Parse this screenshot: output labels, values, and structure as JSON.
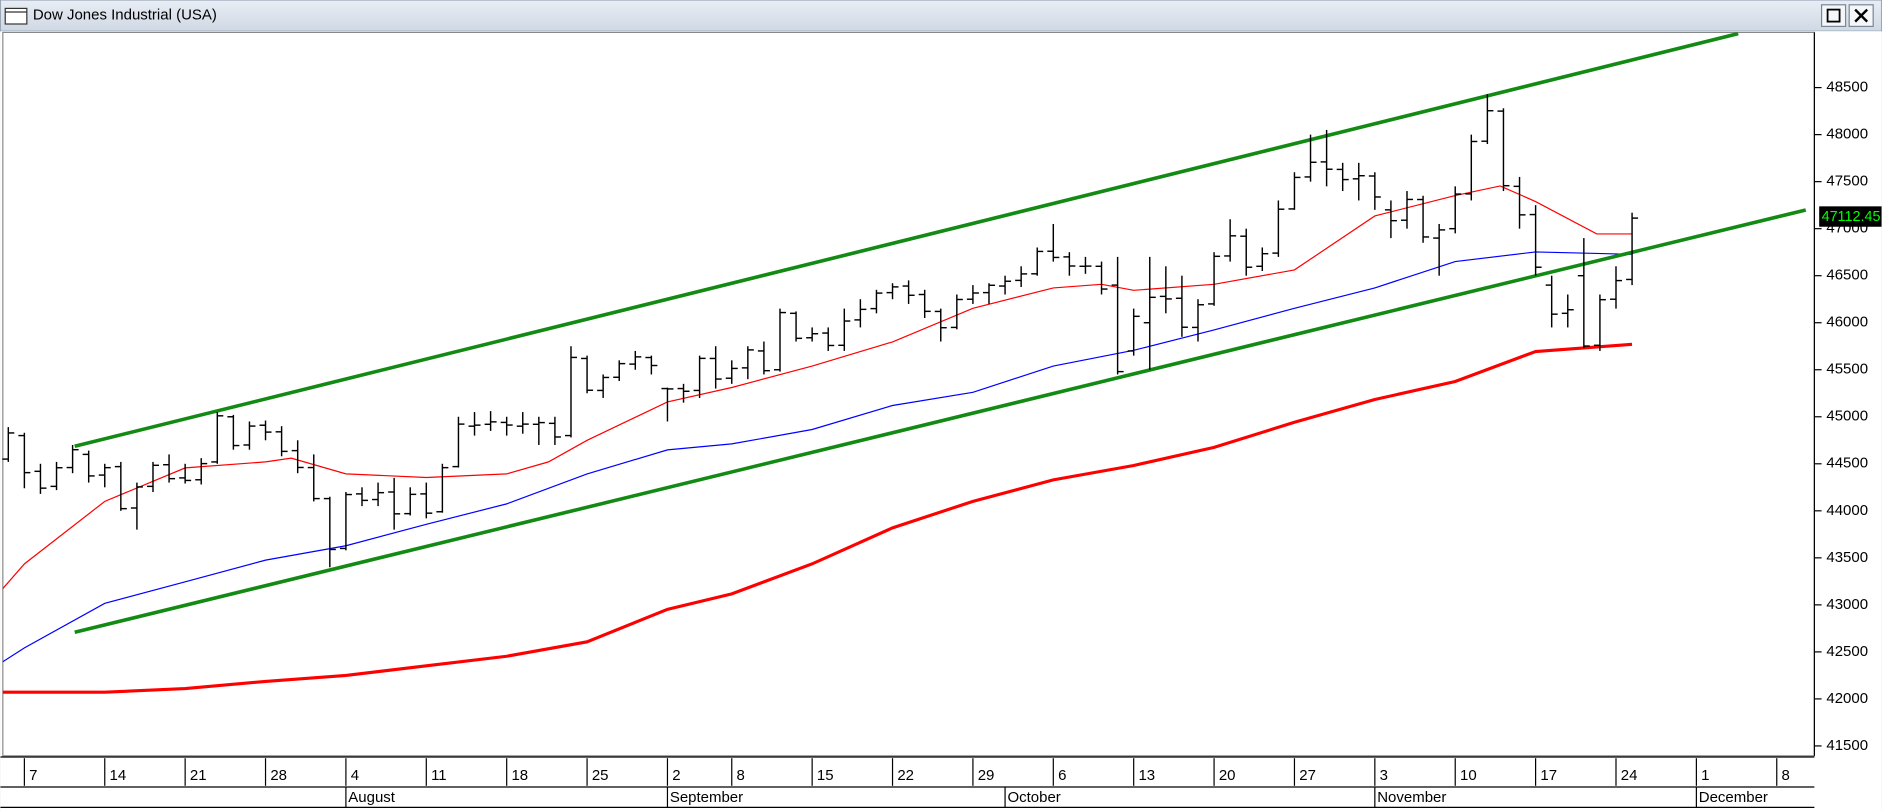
{
  "chart_data": {
    "type": "ohlc",
    "title": "Dow Jones Industrial (USA)",
    "color": "#000000",
    "xlim": [
      -1.34,
      111.34
    ],
    "ylim": [
      41395,
      49087
    ],
    "yticks": [
      41500,
      42000,
      42500,
      43000,
      43500,
      44000,
      44500,
      45000,
      45500,
      46000,
      46500,
      47000,
      47500,
      48000,
      48500
    ],
    "xticks": [
      {
        "value": 0,
        "label": "7"
      },
      {
        "value": 5,
        "label": "14"
      },
      {
        "value": 10,
        "label": "21"
      },
      {
        "value": 15,
        "label": "28"
      },
      {
        "value": 20,
        "label": "4"
      },
      {
        "value": 25,
        "label": "11"
      },
      {
        "value": 30,
        "label": "18"
      },
      {
        "value": 35,
        "label": "25"
      },
      {
        "value": 40,
        "label": "2"
      },
      {
        "value": 44,
        "label": "8"
      },
      {
        "value": 49,
        "label": "15"
      },
      {
        "value": 54,
        "label": "22"
      },
      {
        "value": 59,
        "label": "29"
      },
      {
        "value": 64,
        "label": "6"
      },
      {
        "value": 69,
        "label": "13"
      },
      {
        "value": 74,
        "label": "20"
      },
      {
        "value": 79,
        "label": "27"
      },
      {
        "value": 84,
        "label": "3"
      },
      {
        "value": 89,
        "label": "10"
      },
      {
        "value": 94,
        "label": "17"
      },
      {
        "value": 99,
        "label": "24"
      },
      {
        "value": 104,
        "label": "1"
      },
      {
        "value": 109,
        "label": "8"
      }
    ],
    "month_ticks": [
      {
        "value": 20,
        "label": "August"
      },
      {
        "value": 40,
        "label": "September"
      },
      {
        "value": 61,
        "label": "October"
      },
      {
        "value": 84,
        "label": "November"
      },
      {
        "value": 104,
        "label": "December"
      }
    ],
    "x": [
      -1,
      0,
      1,
      2,
      3,
      4,
      5,
      6,
      7,
      8,
      9,
      10,
      11,
      12,
      13,
      14,
      15,
      16,
      17,
      18,
      19,
      20,
      21,
      22,
      23,
      24,
      25,
      26,
      27,
      28,
      29,
      30,
      31,
      32,
      33,
      34,
      35,
      36,
      37,
      38,
      39,
      40,
      41,
      42,
      43,
      44,
      45,
      46,
      47,
      48,
      49,
      50,
      51,
      52,
      53,
      54,
      55,
      56,
      57,
      58,
      59,
      60,
      61,
      62,
      63,
      64,
      65,
      66,
      67,
      68,
      69,
      70,
      71,
      72,
      73,
      74,
      75,
      76,
      77,
      78,
      79,
      80,
      81,
      82,
      83,
      84,
      85,
      86,
      87,
      88,
      89,
      90,
      91,
      92,
      93,
      94,
      95,
      96,
      97,
      98,
      99,
      100
    ],
    "open": [
      44550,
      44800,
      44420,
      44260,
      44460,
      44600,
      44380,
      44470,
      44030,
      44260,
      44490,
      44350,
      44330,
      44520,
      45000,
      44700,
      44910,
      44840,
      44640,
      44460,
      44130,
      43600,
      44180,
      44120,
      44200,
      43970,
      44180,
      43990,
      44470,
      44900,
      44920,
      44940,
      44900,
      44920,
      44930,
      44800,
      45620,
      45280,
      45420,
      45560,
      45630,
      45300,
      45300,
      45280,
      45620,
      45410,
      45520,
      45700,
      45500,
      46100,
      45840,
      45890,
      45760,
      46030,
      46150,
      46320,
      46390,
      46300,
      46120,
      45950,
      46250,
      46320,
      46390,
      46450,
      46520,
      46760,
      46700,
      46600,
      46600,
      46400,
      45700,
      46000,
      46280,
      46260,
      45950,
      46200,
      46710,
      46920,
      46600,
      46740,
      47210,
      47550,
      47710,
      47630,
      47530,
      47560,
      47200,
      47090,
      47310,
      46900,
      47000,
      47370,
      47930,
      48250,
      47450,
      47150,
      46400,
      46100,
      46500,
      45760,
      46250,
      46460
    ],
    "high": [
      44890,
      44830,
      44500,
      44520,
      44700,
      44640,
      44500,
      44520,
      44300,
      44520,
      44600,
      44500,
      44560,
      45050,
      45020,
      44950,
      44960,
      44900,
      44750,
      44600,
      44150,
      44200,
      44250,
      44300,
      44350,
      44250,
      44300,
      44500,
      45000,
      45050,
      45060,
      45000,
      45050,
      45000,
      45000,
      45750,
      45650,
      45450,
      45600,
      45700,
      45650,
      45310,
      45350,
      45650,
      45750,
      45600,
      45750,
      45800,
      46150,
      46120,
      45950,
      45950,
      46150,
      46250,
      46350,
      46420,
      46450,
      46350,
      46150,
      46300,
      46400,
      46420,
      46500,
      46600,
      46800,
      47050,
      46750,
      46700,
      46650,
      46700,
      46150,
      46700,
      46600,
      46500,
      46250,
      46750,
      47100,
      47000,
      46800,
      47300,
      47600,
      48000,
      48050,
      47700,
      47700,
      47600,
      47300,
      47400,
      47350,
      47050,
      47450,
      48000,
      48430,
      48280,
      47550,
      47250,
      46500,
      46300,
      46900,
      46300,
      46600,
      47170
    ],
    "low": [
      44520,
      44240,
      44180,
      44220,
      44400,
      44300,
      44250,
      44000,
      43800,
      44200,
      44300,
      44290,
      44280,
      44500,
      44650,
      44650,
      44750,
      44580,
      44400,
      44100,
      43400,
      43580,
      44050,
      44050,
      43800,
      43950,
      43920,
      43980,
      44460,
      44800,
      44850,
      44800,
      44820,
      44700,
      44700,
      44780,
      45250,
      45200,
      45380,
      45500,
      45450,
      44950,
      45150,
      45200,
      45300,
      45350,
      45400,
      45450,
      45480,
      45800,
      45800,
      45700,
      45700,
      45950,
      46100,
      46250,
      46200,
      46050,
      45800,
      45930,
      46200,
      46200,
      46300,
      46380,
      46500,
      46650,
      46500,
      46520,
      46300,
      45450,
      45650,
      45500,
      46100,
      45850,
      45800,
      46180,
      46650,
      46500,
      46550,
      46700,
      47200,
      47500,
      47450,
      47400,
      47300,
      47200,
      46900,
      47000,
      46850,
      46500,
      46950,
      47300,
      47900,
      47400,
      47000,
      46500,
      45950,
      45950,
      45730,
      45700,
      46150,
      46400
    ],
    "close": [
      44828,
      44406,
      44241,
      44458,
      44650,
      44371,
      44459,
      44023,
      44254,
      44484,
      44342,
      44323,
      44502,
      45010,
      44694,
      44901,
      44837,
      44632,
      44461,
      44130,
      43589,
      44173,
      44111,
      44193,
      43968,
      44175,
      43975,
      44459,
      44922,
      44911,
      44946,
      44912,
      44922,
      44938,
      44785,
      45631,
      45282,
      45418,
      45565,
      45637,
      45545,
      45296,
      45271,
      45621,
      45401,
      45514,
      45711,
      45490,
      46108,
      45834,
      45883,
      45758,
      46018,
      46142,
      46315,
      46381,
      46292,
      46121,
      45947,
      46247,
      46316,
      46398,
      46441,
      46519,
      46758,
      46694,
      46603,
      46602,
      46358,
      45480,
      46068,
      46270,
      46253,
      45952,
      46191,
      46706,
      46924,
      46590,
      46734,
      47207,
      47545,
      47706,
      47632,
      47522,
      47563,
      47337,
      47085,
      47311,
      46912,
      46987,
      47368,
      47927,
      48254,
      47457,
      47147,
      46590,
      46091,
      46138,
      45752,
      46245,
      46448,
      47112.45
    ],
    "last_price": 47112.45,
    "moving_averages": [
      {
        "color": "#ff0000",
        "width": 1,
        "x": [
          -1.5,
          0,
          5,
          10,
          15,
          16.6,
          20,
          25,
          30,
          32.6,
          35,
          40,
          44,
          49,
          54,
          59,
          64,
          67,
          69,
          74,
          79,
          84,
          89,
          91.8,
          94,
          97.8,
          100
        ],
        "values": [
          43143,
          43436,
          44100,
          44457,
          44520,
          44560,
          44393,
          44355,
          44393,
          44520,
          44750,
          45158,
          45311,
          45540,
          45796,
          46153,
          46370,
          46408,
          46344,
          46408,
          46561,
          47135,
          47352,
          47454,
          47288,
          46944,
          46944
        ]
      },
      {
        "color": "#0000ff",
        "width": 1,
        "x": [
          -1.5,
          0,
          5,
          10,
          15,
          20,
          25,
          30,
          35,
          40,
          44,
          49,
          54,
          59,
          64,
          69,
          74,
          79,
          84,
          89,
          94,
          100
        ],
        "values": [
          42378,
          42543,
          43016,
          43245,
          43475,
          43628,
          43857,
          44074,
          44393,
          44648,
          44712,
          44865,
          45120,
          45260,
          45540,
          45707,
          45923,
          46153,
          46370,
          46651,
          46752,
          46727
        ]
      },
      {
        "color": "#ff0000",
        "width": 2.6,
        "x": [
          -1.5,
          5,
          10,
          15,
          20,
          25,
          30,
          35,
          40,
          44,
          49,
          54,
          59,
          64,
          69,
          74,
          79,
          84,
          89,
          94,
          100
        ],
        "values": [
          42071,
          42071,
          42110,
          42186,
          42250,
          42352,
          42454,
          42607,
          42952,
          43117,
          43436,
          43819,
          44100,
          44329,
          44482,
          44674,
          44941,
          45184,
          45375,
          45694,
          45771
        ]
      }
    ],
    "trendlines": [
      {
        "color": "#138a13",
        "x": [
          3.13,
          106.6
        ],
        "values": [
          44686,
          49074
        ]
      },
      {
        "color": "#138a13",
        "x": [
          3.13,
          110.8
        ],
        "values": [
          42709,
          47199
        ]
      }
    ]
  }
}
